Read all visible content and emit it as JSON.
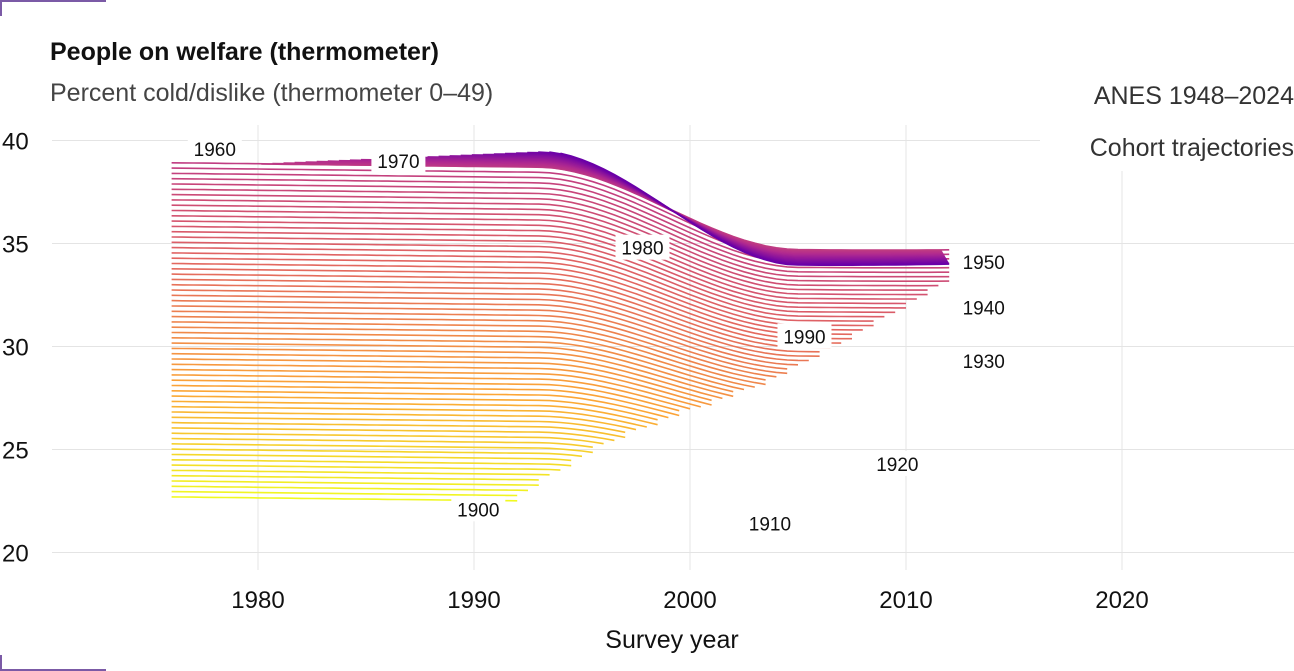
{
  "chart_data": {
    "type": "line",
    "title": "People on welfare (thermometer)",
    "subtitle": "Percent cold/dislike (thermometer 0–49)",
    "source_note": "ANES 1948–2024",
    "annotation": "Cohort trajectories",
    "xlabel": "Survey year",
    "ylabel": "",
    "xlim": [
      1972,
      2028
    ],
    "ylim": [
      20,
      40.5
    ],
    "x_ticks": [
      1980,
      1990,
      2000,
      2010,
      2020
    ],
    "y_ticks": [
      20,
      25,
      30,
      35,
      40
    ],
    "grid": true,
    "legend": "none",
    "series_description": "One line per birth cohort (1900–1960 shown by color from yellow to purple), labeled at 10-year cohorts.",
    "cohort_range": [
      1900,
      1992
    ],
    "cohort_labels": [
      {
        "text": "1900",
        "x": 1990.2,
        "y": 22.0
      },
      {
        "text": "1910",
        "x": 2003.7,
        "y": 21.3
      },
      {
        "text": "1920",
        "x": 2009.6,
        "y": 24.2
      },
      {
        "text": "1930",
        "x": 2013.6,
        "y": 29.2
      },
      {
        "text": "1940",
        "x": 2013.6,
        "y": 31.8
      },
      {
        "text": "1950",
        "x": 2013.6,
        "y": 34.0
      },
      {
        "text": "1960",
        "x": 1978.0,
        "y": 39.5
      },
      {
        "text": "1970",
        "x": 1986.5,
        "y": 38.9
      },
      {
        "text": "1980",
        "x": 1997.8,
        "y": 34.7
      },
      {
        "text": "1990",
        "x": 2005.3,
        "y": 30.4
      }
    ],
    "colors": {
      "low": "#f0f921",
      "mid1": "#fca636",
      "mid2": "#e16462",
      "mid3": "#b12a90",
      "high": "#6a00a8"
    }
  }
}
